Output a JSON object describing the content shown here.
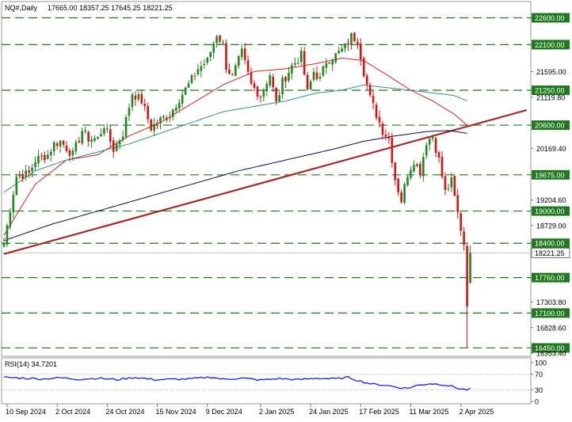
{
  "header": {
    "symbol_text": "NQ#,Daily",
    "ohlc_text": "17665.00 18357.25 17645.25 18221.25"
  },
  "colors": {
    "background": "#ffffff",
    "bull_candle": "#1a8a1a",
    "bear_candle": "#e01010",
    "level_line": "#1f7a1f",
    "ma_fast": "#e02020",
    "ma_mid": "#2f8f8a",
    "ma_slow": "#0a0a50",
    "trendline": "#a52a2a",
    "rsi_line": "#1a1aff",
    "price_label_bg": "#1f7a1f",
    "current_label_bg": "#ffffff"
  },
  "chart_data": [
    {
      "type": "candlestick",
      "title": "NQ#,Daily",
      "ylim": [
        16353.4,
        22725
      ],
      "y_ticks": [
        {
          "value": 22600.0,
          "label": "22600.00",
          "style": "level"
        },
        {
          "value": 22100.0,
          "label": "22100.00",
          "style": "level"
        },
        {
          "value": 21595.0,
          "label": "21595.00",
          "style": "plain"
        },
        {
          "value": 21250.0,
          "label": "21250.00",
          "style": "level"
        },
        {
          "value": 21119.8,
          "label": "21119.80",
          "style": "plain"
        },
        {
          "value": 20600.0,
          "label": "20600.00",
          "style": "level"
        },
        {
          "value": 20169.4,
          "label": "20169.40",
          "style": "plain"
        },
        {
          "value": 19675.0,
          "label": "19675.00",
          "style": "level"
        },
        {
          "value": 19204.6,
          "label": "19204.60",
          "style": "plain"
        },
        {
          "value": 19000.0,
          "label": "19000.00",
          "style": "level"
        },
        {
          "value": 18729.0,
          "label": "18729.00",
          "style": "plain"
        },
        {
          "value": 18400.0,
          "label": "18400.00",
          "style": "level"
        },
        {
          "value": 18221.25,
          "label": "18221.25",
          "style": "current"
        },
        {
          "value": 17760.0,
          "label": "17760.00",
          "style": "level"
        },
        {
          "value": 17303.8,
          "label": "17303.80",
          "style": "plain"
        },
        {
          "value": 17100.0,
          "label": "17100.00",
          "style": "level"
        },
        {
          "value": 16828.6,
          "label": "16828.60",
          "style": "plain"
        },
        {
          "value": 16450.0,
          "label": "16450.00",
          "style": "level"
        },
        {
          "value": 16353.4,
          "label": "16353.40",
          "style": "plain"
        }
      ],
      "horizontal_levels": [
        22600,
        22100,
        21250,
        20600,
        19675,
        19000,
        18400,
        17760,
        17100,
        16450
      ],
      "current_price": 18221.25,
      "x_labels": [
        {
          "i": 1,
          "label": "10 Sep 2024"
        },
        {
          "i": 17,
          "label": "2 Oct 2024"
        },
        {
          "i": 33,
          "label": "24 Oct 2024"
        },
        {
          "i": 49,
          "label": "15 Nov 2024"
        },
        {
          "i": 65,
          "label": "9 Dec 2024"
        },
        {
          "i": 82,
          "label": "2 Jan 2025"
        },
        {
          "i": 98,
          "label": "24 Jan 2025"
        },
        {
          "i": 114,
          "label": "17 Feb 2025"
        },
        {
          "i": 130,
          "label": "11 Mar 2025"
        },
        {
          "i": 146,
          "label": "2 Apr 2025"
        }
      ],
      "bar_count": 150,
      "close_anchors": [
        [
          0,
          18400
        ],
        [
          2,
          19050
        ],
        [
          4,
          19650
        ],
        [
          8,
          19700
        ],
        [
          10,
          19950
        ],
        [
          14,
          20050
        ],
        [
          16,
          20250
        ],
        [
          18,
          20300
        ],
        [
          22,
          20050
        ],
        [
          25,
          20500
        ],
        [
          27,
          20350
        ],
        [
          30,
          20350
        ],
        [
          32,
          20600
        ],
        [
          35,
          20150
        ],
        [
          38,
          20450
        ],
        [
          41,
          21200
        ],
        [
          44,
          21050
        ],
        [
          47,
          20550
        ],
        [
          50,
          20700
        ],
        [
          53,
          20800
        ],
        [
          56,
          21100
        ],
        [
          59,
          21350
        ],
        [
          62,
          21650
        ],
        [
          65,
          21800
        ],
        [
          68,
          22300
        ],
        [
          70,
          22100
        ],
        [
          71,
          21700
        ],
        [
          73,
          21500
        ],
        [
          76,
          21950
        ],
        [
          79,
          21350
        ],
        [
          82,
          21150
        ],
        [
          85,
          21550
        ],
        [
          87,
          21000
        ],
        [
          89,
          21400
        ],
        [
          92,
          21700
        ],
        [
          95,
          21900
        ],
        [
          97,
          21200
        ],
        [
          99,
          21600
        ],
        [
          101,
          21450
        ],
        [
          103,
          21800
        ],
        [
          106,
          21900
        ],
        [
          109,
          22050
        ],
        [
          111,
          22250
        ],
        [
          113,
          22200
        ],
        [
          115,
          21600
        ],
        [
          117,
          21100
        ],
        [
          119,
          20800
        ],
        [
          121,
          20500
        ],
        [
          123,
          20350
        ],
        [
          125,
          19600
        ],
        [
          127,
          19200
        ],
        [
          129,
          19700
        ],
        [
          131,
          19950
        ],
        [
          133,
          19750
        ],
        [
          135,
          20300
        ],
        [
          137,
          20400
        ],
        [
          139,
          19950
        ],
        [
          141,
          19350
        ],
        [
          143,
          19550
        ],
        [
          145,
          18950
        ],
        [
          147,
          18400
        ],
        [
          148,
          17300
        ],
        [
          149,
          18221.25
        ]
      ],
      "extremes": {
        "high_index": 111,
        "high": 22330,
        "low_index": 148,
        "low": 16460
      },
      "trendline": {
        "from": {
          "i": 0,
          "price": 18200
        },
        "to": {
          "i": 167,
          "price": 20880
        }
      },
      "moving_averages": [
        {
          "role": "fast",
          "points": [
            [
              0,
              18550
            ],
            [
              10,
              19500
            ],
            [
              20,
              19950
            ],
            [
              30,
              20050
            ],
            [
              40,
              20400
            ],
            [
              50,
              20650
            ],
            [
              60,
              21000
            ],
            [
              70,
              21350
            ],
            [
              80,
              21600
            ],
            [
              90,
              21650
            ],
            [
              100,
              21750
            ],
            [
              108,
              21850
            ],
            [
              115,
              21800
            ],
            [
              122,
              21550
            ],
            [
              130,
              21250
            ],
            [
              137,
              21050
            ],
            [
              144,
              20800
            ],
            [
              148,
              20600
            ]
          ]
        },
        {
          "role": "mid",
          "points": [
            [
              0,
              19350
            ],
            [
              10,
              19750
            ],
            [
              20,
              19950
            ],
            [
              30,
              20100
            ],
            [
              40,
              20250
            ],
            [
              50,
              20450
            ],
            [
              60,
              20650
            ],
            [
              70,
              20850
            ],
            [
              80,
              20950
            ],
            [
              90,
              21050
            ],
            [
              100,
              21200
            ],
            [
              108,
              21250
            ],
            [
              115,
              21350
            ],
            [
              122,
              21300
            ],
            [
              130,
              21250
            ],
            [
              137,
              21200
            ],
            [
              144,
              21150
            ],
            [
              148,
              21050
            ]
          ]
        },
        {
          "role": "slow",
          "points": [
            [
              0,
              18450
            ],
            [
              15,
              18750
            ],
            [
              30,
              19000
            ],
            [
              45,
              19250
            ],
            [
              60,
              19500
            ],
            [
              75,
              19750
            ],
            [
              90,
              19950
            ],
            [
              105,
              20150
            ],
            [
              115,
              20300
            ],
            [
              125,
              20400
            ],
            [
              135,
              20480
            ],
            [
              142,
              20500
            ],
            [
              148,
              20450
            ]
          ]
        }
      ]
    },
    {
      "type": "line",
      "title": "RSI(14) 34.7201",
      "label_text": "RSI(14) 34.7201",
      "ylim": [
        0,
        100
      ],
      "y_ticks": [
        100,
        70,
        30,
        0
      ],
      "y_tick_labels": [
        "100",
        "70",
        "30",
        "0"
      ],
      "guide_levels": [
        70,
        30
      ],
      "anchors": [
        [
          0,
          62
        ],
        [
          6,
          60
        ],
        [
          12,
          58
        ],
        [
          18,
          61
        ],
        [
          24,
          57
        ],
        [
          30,
          60
        ],
        [
          36,
          56
        ],
        [
          42,
          62
        ],
        [
          48,
          56
        ],
        [
          54,
          57
        ],
        [
          60,
          58
        ],
        [
          66,
          63
        ],
        [
          70,
          57
        ],
        [
          76,
          60
        ],
        [
          82,
          55
        ],
        [
          88,
          59
        ],
        [
          94,
          56
        ],
        [
          100,
          60
        ],
        [
          106,
          58
        ],
        [
          110,
          62
        ],
        [
          114,
          52
        ],
        [
          118,
          44
        ],
        [
          122,
          42
        ],
        [
          126,
          36
        ],
        [
          129,
          34
        ],
        [
          132,
          41
        ],
        [
          136,
          46
        ],
        [
          140,
          44
        ],
        [
          143,
          39
        ],
        [
          146,
          32
        ],
        [
          148,
          30
        ],
        [
          149,
          34.72
        ]
      ],
      "current_value": 34.72
    }
  ]
}
